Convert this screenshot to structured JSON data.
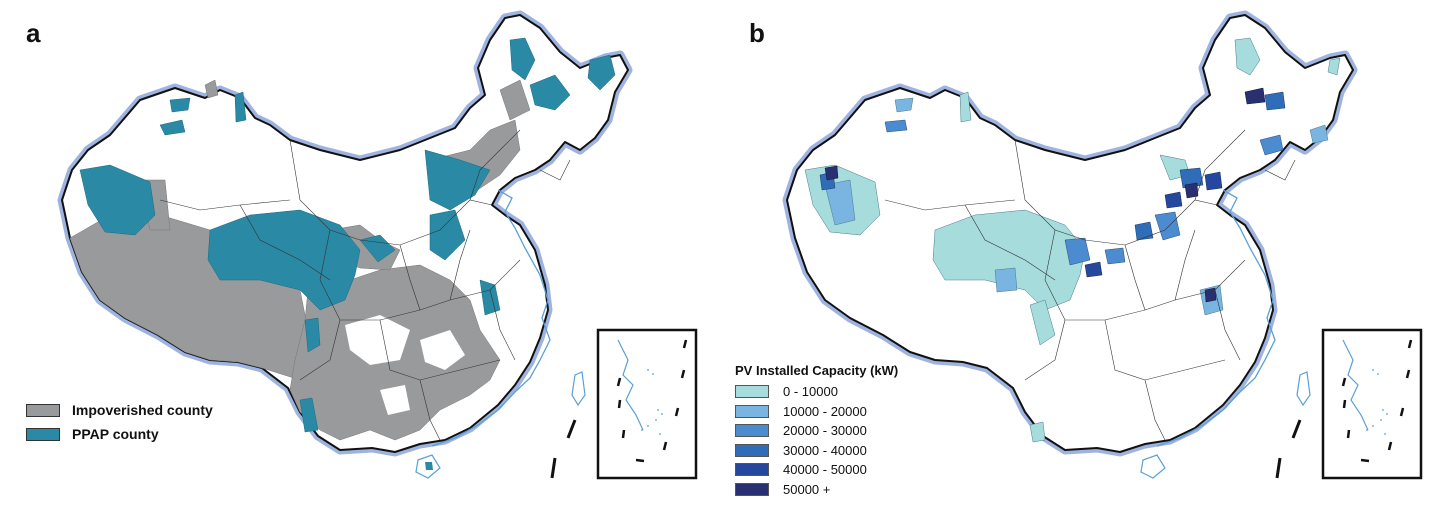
{
  "colors": {
    "impoverished": "#999a9c",
    "ppap": "#2a8aa5",
    "border": "#111111",
    "border_glow": "#9fb3e0",
    "coast": "#5aa0d8",
    "province": "#333333",
    "tier1": "#a6dcdc",
    "tier2": "#7ab4e0",
    "tier3": "#4a8ccf",
    "tier4": "#2f6db8",
    "tier5": "#26479e",
    "tier6": "#283072"
  },
  "panel_a": {
    "letter": "a",
    "legend": [
      {
        "label": "Impoverished county",
        "color": "#999a9c"
      },
      {
        "label": "PPAP county",
        "color": "#2a8aa5"
      }
    ]
  },
  "panel_b": {
    "letter": "b",
    "legend_title": "PV Installed Capacity (kW)",
    "legend": [
      {
        "label": "0 - 10000",
        "color": "#a6dcdc"
      },
      {
        "label": "10000 - 20000",
        "color": "#7ab4e0"
      },
      {
        "label": "20000 - 30000",
        "color": "#4a8ccf"
      },
      {
        "label": "30000 - 40000",
        "color": "#2f6db8"
      },
      {
        "label": "40000 - 50000",
        "color": "#26479e"
      },
      {
        "label": "50000 +",
        "color": "#283072"
      }
    ]
  }
}
